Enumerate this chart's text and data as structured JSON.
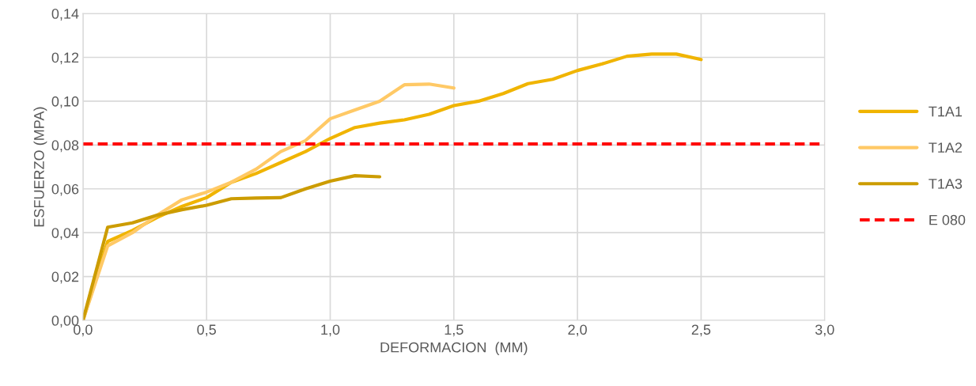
{
  "chart_data": {
    "type": "line",
    "xlabel": "DEFORMACION  (MM)",
    "ylabel": "ESFUERZO (MPA)",
    "xlim": [
      0,
      3
    ],
    "xticks": [
      {
        "value": 0,
        "label": "0,0"
      },
      {
        "value": 0.5,
        "label": "0,5"
      },
      {
        "value": 1,
        "label": "1,0"
      },
      {
        "value": 1.5,
        "label": "1,5"
      },
      {
        "value": 2,
        "label": "2,0"
      },
      {
        "value": 2.5,
        "label": "2,5"
      },
      {
        "value": 3,
        "label": "3,0"
      }
    ],
    "ylim": [
      0,
      0.14
    ],
    "yticks": [
      {
        "value": 0,
        "label": "0,00"
      },
      {
        "value": 0.02,
        "label": "0,02"
      },
      {
        "value": 0.04,
        "label": "0,04"
      },
      {
        "value": 0.06,
        "label": "0,06"
      },
      {
        "value": 0.08,
        "label": "0,08"
      },
      {
        "value": 0.1,
        "label": "0,10"
      },
      {
        "value": 0.12,
        "label": "0,12"
      },
      {
        "value": 0.14,
        "label": "0,14"
      }
    ],
    "grid": true,
    "legend": "right",
    "marker": "none",
    "line_style": "solid",
    "series": [
      {
        "name": "T1A1",
        "color": "#f0b400",
        "x": [
          0,
          0.1,
          0.2,
          0.3,
          0.4,
          0.5,
          0.6,
          0.7,
          0.8,
          0.9,
          1.0,
          1.1,
          1.2,
          1.3,
          1.4,
          1.5,
          1.6,
          1.7,
          1.8,
          1.9,
          2.0,
          2.1,
          2.2,
          2.3,
          2.4,
          2.5
        ],
        "values": [
          0,
          0.036,
          0.041,
          0.047,
          0.052,
          0.056,
          0.063,
          0.067,
          0.072,
          0.077,
          0.083,
          0.088,
          0.09,
          0.0915,
          0.094,
          0.098,
          0.1,
          0.1035,
          0.108,
          0.11,
          0.114,
          0.117,
          0.1205,
          0.1215,
          0.1215,
          0.119
        ]
      },
      {
        "name": "T1A2",
        "color": "#ffc966",
        "x": [
          0,
          0.1,
          0.2,
          0.3,
          0.4,
          0.5,
          0.6,
          0.7,
          0.8,
          0.9,
          1.0,
          1.1,
          1.2,
          1.3,
          1.4,
          1.5
        ],
        "values": [
          0,
          0.034,
          0.04,
          0.048,
          0.055,
          0.0585,
          0.063,
          0.069,
          0.077,
          0.082,
          0.092,
          0.096,
          0.1,
          0.1075,
          0.1078,
          0.106
        ]
      },
      {
        "name": "T1A3",
        "color": "#cc9c00",
        "x": [
          0,
          0.1,
          0.2,
          0.3,
          0.4,
          0.5,
          0.6,
          0.7,
          0.8,
          0.9,
          1.0,
          1.1,
          1.2
        ],
        "values": [
          0,
          0.0425,
          0.0445,
          0.048,
          0.0505,
          0.0525,
          0.0555,
          0.0558,
          0.056,
          0.06,
          0.0635,
          0.066,
          0.0655
        ]
      }
    ],
    "ref_lines": [
      {
        "axis": "y",
        "value": 0.0805,
        "label": "E 080",
        "color": "#ff0000",
        "line_style": "dashed"
      }
    ]
  }
}
